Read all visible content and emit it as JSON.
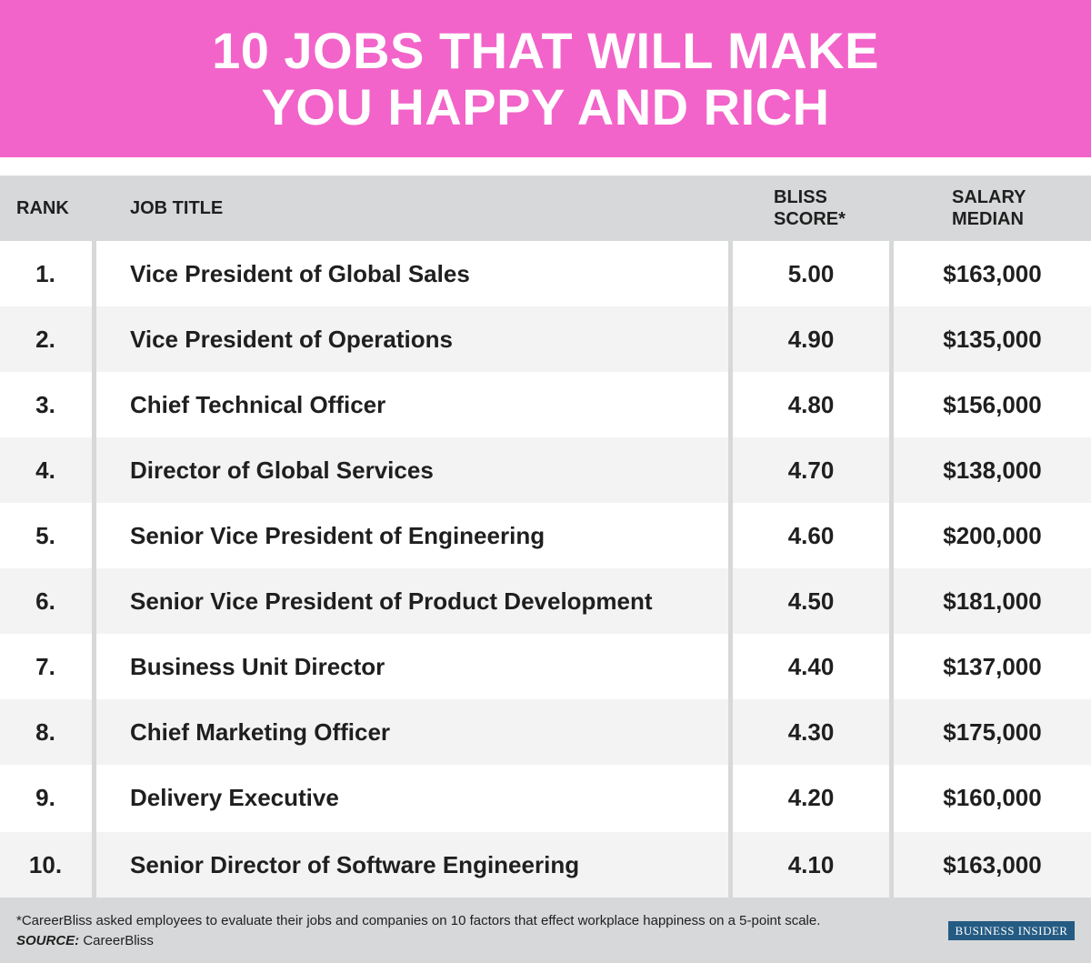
{
  "chart_data": {
    "type": "table",
    "title": "10 JOBS THAT WILL MAKE YOU HAPPY AND RICH",
    "columns": {
      "rank": "RANK",
      "job_title": "JOB TITLE",
      "bliss_score_line1": "BLISS",
      "bliss_score_line2": "SCORE*",
      "salary_line1": "SALARY",
      "salary_line2": "MEDIAN"
    },
    "rows": [
      {
        "rank": "1.",
        "job_title": "Vice President of Global Sales",
        "bliss_score": "5.00",
        "salary": "$163,000"
      },
      {
        "rank": "2.",
        "job_title": "Vice President of Operations",
        "bliss_score": "4.90",
        "salary": "$135,000"
      },
      {
        "rank": "3.",
        "job_title": "Chief Technical Officer",
        "bliss_score": "4.80",
        "salary": "$156,000"
      },
      {
        "rank": "4.",
        "job_title": "Director of Global Services",
        "bliss_score": "4.70",
        "salary": "$138,000"
      },
      {
        "rank": "5.",
        "job_title": "Senior Vice President of Engineering",
        "bliss_score": "4.60",
        "salary": "$200,000"
      },
      {
        "rank": "6.",
        "job_title": "Senior Vice President of Product Development",
        "bliss_score": "4.50",
        "salary": "$181,000"
      },
      {
        "rank": "7.",
        "job_title": "Business Unit Director",
        "bliss_score": "4.40",
        "salary": "$137,000"
      },
      {
        "rank": "8.",
        "job_title": "Chief Marketing Officer",
        "bliss_score": "4.30",
        "salary": "$175,000"
      },
      {
        "rank": "9.",
        "job_title": "Delivery Executive",
        "bliss_score": "4.20",
        "salary": "$160,000"
      },
      {
        "rank": "10.",
        "job_title": "Senior Director of Software Engineering",
        "bliss_score": "4.10",
        "salary": "$163,000"
      }
    ],
    "footnote": "*CareerBliss asked employees to evaluate their jobs and companies on 10 factors that effect workplace happiness on a 5-point scale.",
    "source_label": "SOURCE:",
    "source_value": "CareerBliss"
  },
  "branding": {
    "logo_text": "BUSINESS INSIDER"
  },
  "colors": {
    "banner": "#f264c9",
    "header_band": "#d7d8d9",
    "row_alt": "#f3f3f3",
    "logo_bg": "#245b83"
  }
}
